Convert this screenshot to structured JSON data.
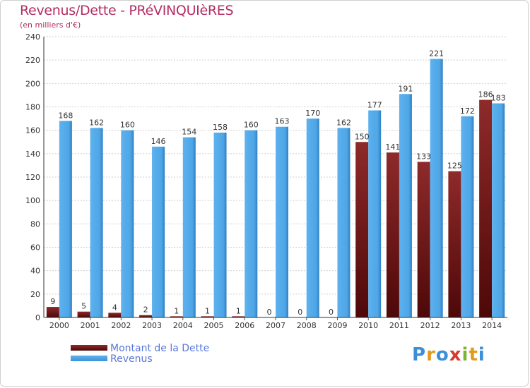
{
  "title": "Revenus/Dette - PRéVINQUIèRES",
  "subtitle": "(en milliers d'€)",
  "legend": {
    "dette": "Montant de la Dette",
    "revenus": "Revenus"
  },
  "logo_text": "Proxiti",
  "colors": {
    "dette": "#7a1c1c",
    "revenus": "#4ea6e6",
    "title": "#b32d63",
    "legend_text": "#5a78d8"
  },
  "chart_data": {
    "type": "bar",
    "title": "Revenus/Dette - PRéVINQUIèRES",
    "ylabel": "(en milliers d'€)",
    "xlabel": "",
    "ylim": [
      0,
      240
    ],
    "yticks": [
      0,
      20,
      40,
      60,
      80,
      100,
      120,
      140,
      160,
      180,
      200,
      220,
      240
    ],
    "grid": true,
    "legend_position": "bottom-left",
    "categories": [
      "2000",
      "2001",
      "2002",
      "2003",
      "2004",
      "2005",
      "2006",
      "2007",
      "2008",
      "2009",
      "2010",
      "2011",
      "2012",
      "2013",
      "2014"
    ],
    "series": [
      {
        "name": "Montant de la Dette",
        "values": [
          9,
          5,
          4,
          2,
          1,
          1,
          1,
          0,
          0,
          0,
          150,
          141,
          133,
          125,
          186
        ]
      },
      {
        "name": "Revenus",
        "values": [
          168,
          162,
          160,
          146,
          154,
          158,
          160,
          163,
          170,
          162,
          177,
          191,
          221,
          172,
          183
        ]
      }
    ]
  }
}
